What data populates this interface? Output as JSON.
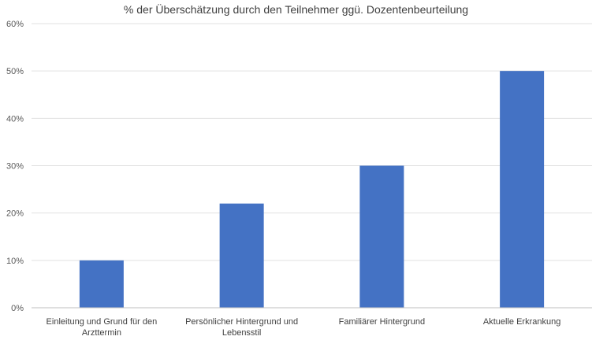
{
  "chart_data": {
    "type": "bar",
    "title": "% der Überschätzung durch den Teilnehmer ggü. Dozentenbeurteilung",
    "categories": [
      [
        "Einleitung und Grund für den",
        "Arzttermin"
      ],
      [
        "Persönlicher Hintergrund und",
        "Lebensstil"
      ],
      [
        "Familiärer Hintergrund"
      ],
      [
        "Aktuelle Erkrankung"
      ]
    ],
    "values": [
      10,
      22,
      30,
      50
    ],
    "ylim": [
      0,
      60
    ],
    "yticks": [
      0,
      10,
      20,
      30,
      40,
      50,
      60
    ],
    "ytick_labels": [
      "0%",
      "10%",
      "20%",
      "30%",
      "40%",
      "50%",
      "60%"
    ],
    "grid": true,
    "bar_color": "#4472C4",
    "grid_color": "#E0E0E0",
    "axis_color": "#BFBFBF"
  }
}
